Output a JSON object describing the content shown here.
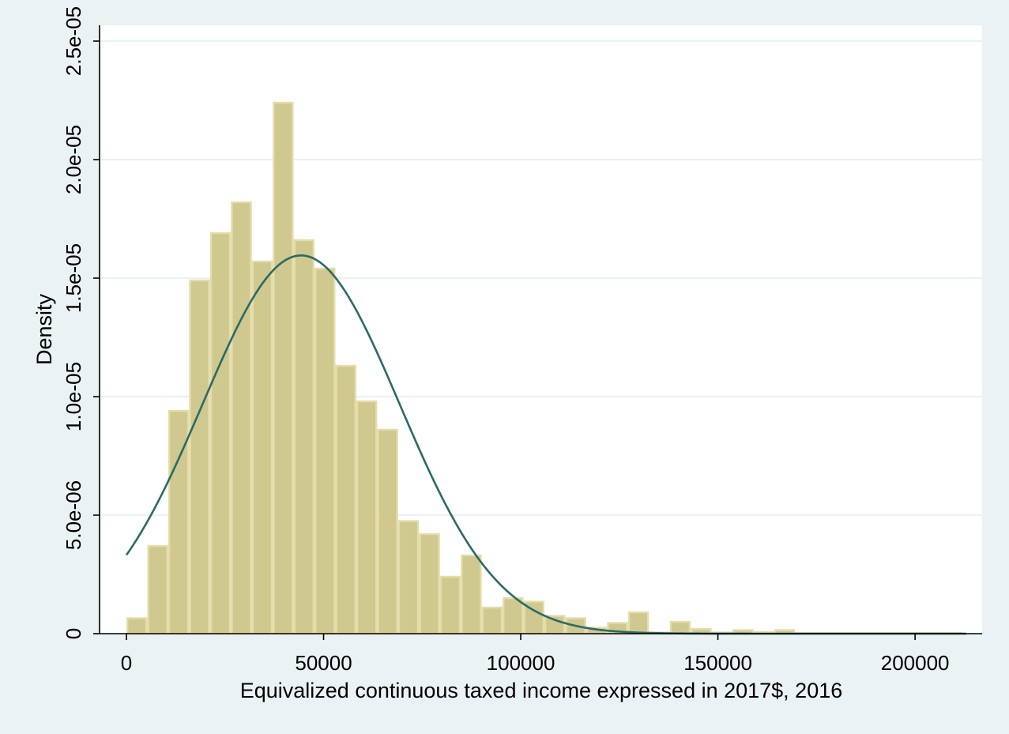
{
  "chart_data": {
    "type": "bar",
    "subtype": "histogram with normal density overlay",
    "title": "",
    "xlabel": "Equivalized continuous taxed income expressed in 2017$, 2016",
    "ylabel": "Density",
    "xlim": [
      0,
      213000
    ],
    "ylim": [
      0,
      2.55e-05
    ],
    "xticks": [
      0,
      50000,
      100000,
      150000,
      200000
    ],
    "xtick_labels": [
      "0",
      "50000",
      "100000",
      "150000",
      "200000"
    ],
    "yticks": [
      0,
      5e-06,
      1e-05,
      1.5e-05,
      2e-05,
      2.5e-05
    ],
    "ytick_labels": [
      "0",
      "5.0e-06",
      "1.0e-05",
      "1.5e-05",
      "2.0e-05",
      "2.5e-05"
    ],
    "grid": "horizontal",
    "legend": "none",
    "bin_width": 5300,
    "bin_start": 0,
    "bin_values": [
      6.5e-07,
      3.7e-06,
      9.4e-06,
      1.49e-05,
      1.69e-05,
      1.82e-05,
      1.57e-05,
      2.24e-05,
      1.66e-05,
      1.54e-05,
      1.13e-05,
      9.8e-06,
      8.6e-06,
      4.75e-06,
      4.2e-06,
      2.4e-06,
      3.3e-06,
      1.1e-06,
      1.5e-06,
      1.35e-06,
      7.5e-07,
      6.5e-07,
      2.5e-07,
      4.5e-07,
      9e-07,
      5e-08,
      5e-07,
      2e-07,
      5e-08,
      1.5e-07,
      7e-08,
      1.5e-07,
      3e-08,
      3e-08,
      3e-08,
      3e-08,
      3e-08,
      3e-08,
      3e-08,
      3e-08
    ],
    "density_curve": {
      "type": "normal",
      "mean": 44300,
      "sd": 25000
    },
    "colors": {
      "bars": "#cfc88f",
      "bar_edge": "#e4ddaa",
      "curve": "#2b6a66",
      "grid": "#eaf2f3",
      "plot_bg": "#ffffff",
      "page_bg": "#eaf2f3"
    }
  }
}
